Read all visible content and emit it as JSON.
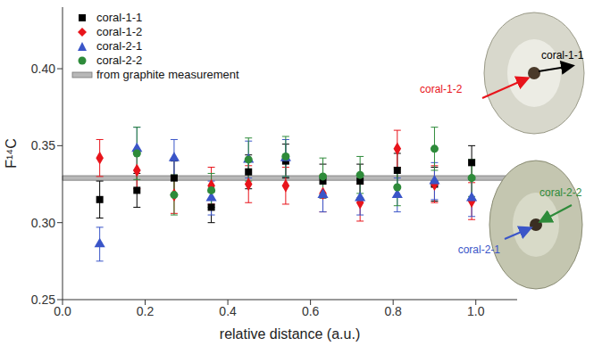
{
  "chart_data": {
    "type": "scatter",
    "x_label": "relative distance (a.u.)",
    "y_label": "F¹⁴C",
    "x": [
      0.09,
      0.18,
      0.27,
      0.36,
      0.45,
      0.54,
      0.63,
      0.72,
      0.81,
      0.9,
      0.99
    ],
    "series": [
      {
        "name": "coral-1-1",
        "color": "#000000",
        "marker": "square",
        "values": [
          0.315,
          0.321,
          0.329,
          0.31,
          0.333,
          0.34,
          0.327,
          0.327,
          0.334,
          0.325,
          0.339
        ],
        "errors": [
          0.012,
          0.011,
          0.011,
          0.01,
          0.011,
          0.011,
          0.011,
          0.011,
          0.011,
          0.011,
          0.011
        ]
      },
      {
        "name": "coral-1-2",
        "color": "#e8141b",
        "marker": "diamond",
        "values": [
          0.342,
          0.334,
          0.318,
          0.324,
          0.325,
          0.324,
          0.319,
          0.313,
          0.348,
          0.325,
          0.314
        ],
        "errors": [
          0.012,
          0.012,
          0.012,
          0.012,
          0.012,
          0.012,
          0.012,
          0.012,
          0.012,
          0.012,
          0.012
        ]
      },
      {
        "name": "coral-2-1",
        "color": "#3a55c8",
        "marker": "triangle",
        "values": [
          0.286,
          0.348,
          0.342,
          0.316,
          0.341,
          0.342,
          0.318,
          0.316,
          0.318,
          0.327,
          0.316
        ],
        "errors": [
          0.011,
          0.014,
          0.012,
          0.011,
          0.012,
          0.012,
          0.011,
          0.011,
          0.011,
          0.012,
          0.012
        ]
      },
      {
        "name": "coral-2-2",
        "color": "#2e8b3a",
        "marker": "circle",
        "values": [
          null,
          0.345,
          0.318,
          0.321,
          0.341,
          0.343,
          0.33,
          0.331,
          0.323,
          0.348,
          0.329
        ],
        "errors": [
          null,
          0.017,
          0.013,
          0.011,
          0.014,
          0.013,
          0.012,
          0.012,
          0.012,
          0.014,
          0.012
        ]
      }
    ],
    "reference_band": {
      "name": "from graphite measurement",
      "value": 0.329,
      "error": 0.0015,
      "color": "#b8b8b8"
    },
    "xlim": [
      0,
      1.1
    ],
    "xticks": [
      {
        "value": 0,
        "label": "0.0"
      },
      {
        "value": 0.2,
        "label": "0.2"
      },
      {
        "value": 0.4,
        "label": "0.4"
      },
      {
        "value": 0.6,
        "label": "0.6"
      },
      {
        "value": 0.8,
        "label": "0.8"
      },
      {
        "value": 1,
        "label": "1.0"
      }
    ],
    "ylim": [
      0.25,
      0.44
    ],
    "yticks": [
      {
        "value": 0.25,
        "label": "0.25"
      },
      {
        "value": 0.3,
        "label": "0.30"
      },
      {
        "value": 0.35,
        "label": "0.35"
      },
      {
        "value": 0.4,
        "label": "0.40"
      }
    ],
    "grid": false,
    "legend": "upper left"
  }
}
